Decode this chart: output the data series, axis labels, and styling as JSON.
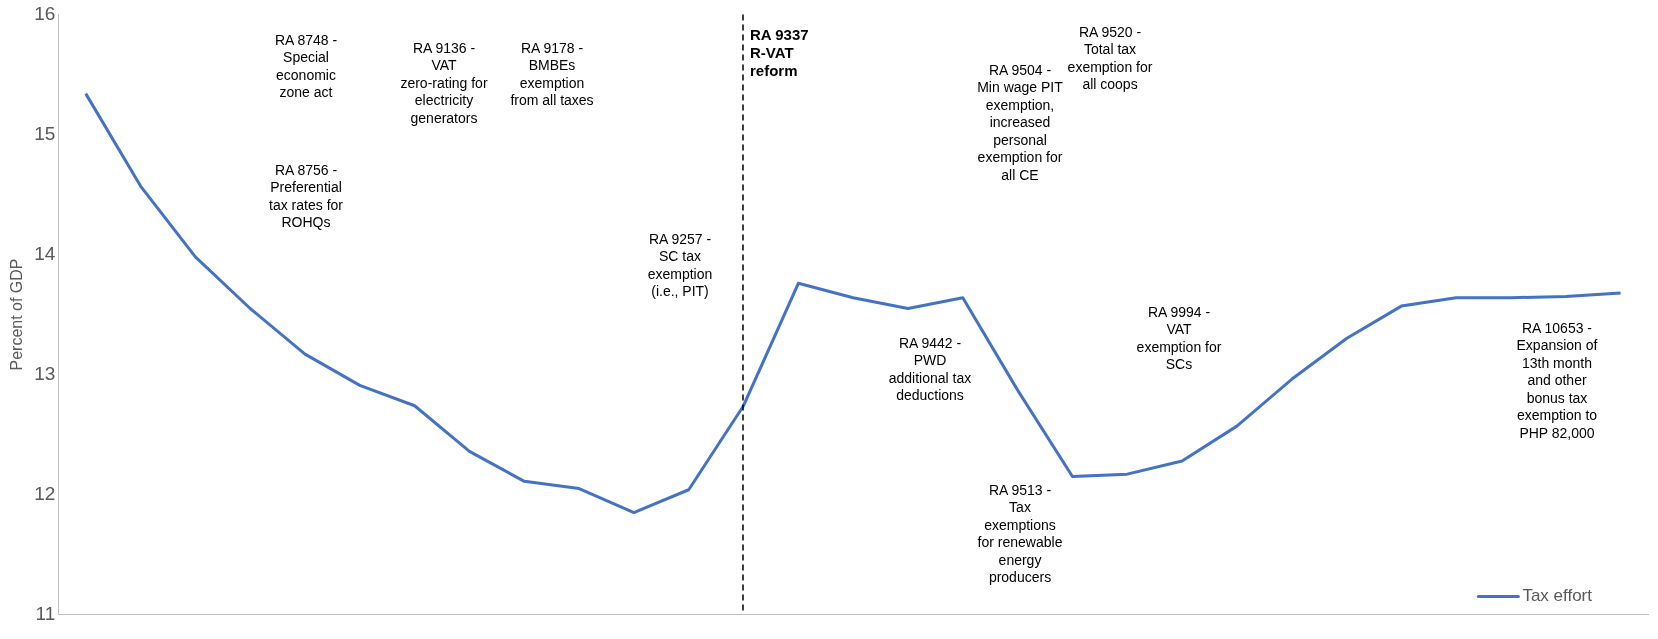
{
  "chart_data": {
    "type": "line",
    "ylabel": "Percent of GDP",
    "categories": [
      null,
      null,
      null,
      null,
      null,
      null,
      null,
      null,
      null,
      null,
      null,
      null,
      null,
      null,
      null,
      null,
      null,
      null,
      null,
      null,
      null,
      null,
      null,
      null,
      null,
      null,
      null,
      null,
      null
    ],
    "ylim": [
      11,
      16
    ],
    "yticks": [
      11,
      12,
      13,
      14,
      15,
      16
    ],
    "grid": false,
    "legend": "bottom right",
    "marker": "none",
    "line_style": "solid",
    "series": [
      {
        "name": "Tax effort",
        "color": "#4472c4",
        "values": [
          15.34,
          14.57,
          13.98,
          13.55,
          13.17,
          12.91,
          12.74,
          12.36,
          12.11,
          12.05,
          11.85,
          12.04,
          12.74,
          13.76,
          13.64,
          13.55,
          13.64,
          12.87,
          12.15,
          12.17,
          12.28,
          12.57,
          12.96,
          13.3,
          13.57,
          13.64,
          13.64,
          13.65,
          13.68
        ]
      }
    ],
    "annotations": [
      "RA 9337 R-VAT reform",
      "RA 8748 - Special economic zone act",
      "RA 8756 - Preferential tax rates for ROHQs",
      "RA 9136 - VAT zero-rating for electricity generators",
      "RA 9178 - BMBEs exemption from all taxes",
      "RA 9257 - SC tax exemption (i.e., PIT)",
      "RA 9504 - Min wage PIT exemption, increased personal exemption for all CE",
      "RA 9520 - Total tax exemption for all coops",
      "RA 9442 - PWD additional tax deductions",
      "RA 9513 - Tax exemptions for renewable energy producers",
      "RA 9994 - VAT exemption for SCs",
      "RA 10653 - Expansion of 13th month and other bonus tax exemption to PHP 82,000"
    ]
  }
}
